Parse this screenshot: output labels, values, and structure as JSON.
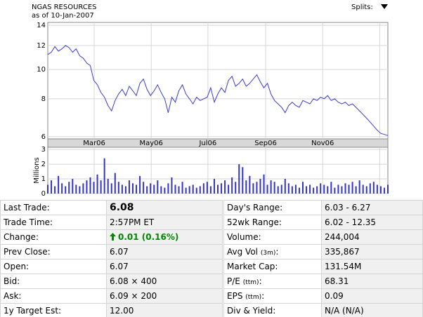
{
  "chart_data": [
    {
      "type": "line",
      "title": "NGAS RESOURCES",
      "subtitle": "as of 10-Jan-2007",
      "splits_label": "Splits:",
      "log_scale": true,
      "grid": true,
      "color": "#3a3ad8",
      "xlim": [
        0,
        96
      ],
      "xticks": [
        {
          "value": 13.1,
          "label": "Mar06"
        },
        {
          "value": 29.2,
          "label": "May06"
        },
        {
          "value": 45.2,
          "label": "Jul06"
        },
        {
          "value": 61.5,
          "label": "Sep06"
        },
        {
          "value": 77.6,
          "label": "Nov06"
        },
        {
          "value": 93.7,
          "label": null
        }
      ],
      "ylim": [
        5.9,
        14.3
      ],
      "yticks": [
        6,
        8,
        10,
        12,
        14
      ],
      "values": [
        11.2,
        11.4,
        11.9,
        11.5,
        11.7,
        12.0,
        11.8,
        11.4,
        11.7,
        11.1,
        10.9,
        10.5,
        10.3,
        9.2,
        8.9,
        8.4,
        8.1,
        7.6,
        7.3,
        7.9,
        8.3,
        8.6,
        8.2,
        8.8,
        8.5,
        8.2,
        9.0,
        9.3,
        8.6,
        8.2,
        8.5,
        8.9,
        8.4,
        8.0,
        7.2,
        8.1,
        7.8,
        8.5,
        8.9,
        8.3,
        8.0,
        7.7,
        8.1,
        7.9,
        8.0,
        8.1,
        8.7,
        7.8,
        8.3,
        8.7,
        8.4,
        9.2,
        9.5,
        8.8,
        9.0,
        9.3,
        8.8,
        9.0,
        9.3,
        9.6,
        9.1,
        8.7,
        9.0,
        8.3,
        7.9,
        7.7,
        7.5,
        7.2,
        7.6,
        7.8,
        7.6,
        7.5,
        7.9,
        7.8,
        7.7,
        8.0,
        7.9,
        8.1,
        8.0,
        8.2,
        7.9,
        8.0,
        7.8,
        7.7,
        7.8,
        7.6,
        7.7,
        7.5,
        7.3,
        7.1,
        6.9,
        6.7,
        6.5,
        6.3,
        6.15,
        6.1,
        6.05
      ]
    },
    {
      "type": "bar",
      "ylabel": "Millions",
      "grid": true,
      "color": "#3333cc",
      "xlim": [
        0,
        96
      ],
      "ylim": [
        0,
        3.15
      ],
      "yticks": [
        0,
        1,
        2,
        3
      ],
      "values": [
        0.6,
        0.9,
        0.5,
        1.2,
        0.7,
        0.5,
        0.8,
        1.0,
        0.6,
        0.5,
        0.7,
        0.9,
        1.1,
        0.8,
        1.3,
        0.9,
        2.4,
        1.0,
        0.7,
        1.4,
        0.8,
        0.6,
        0.5,
        0.9,
        0.7,
        0.6,
        1.2,
        0.8,
        0.5,
        0.7,
        0.6,
        0.9,
        0.5,
        0.4,
        0.7,
        1.1,
        0.6,
        0.5,
        0.8,
        0.4,
        0.5,
        0.6,
        0.4,
        0.5,
        0.7,
        0.8,
        0.5,
        1.0,
        0.6,
        0.7,
        0.9,
        0.6,
        1.1,
        0.8,
        2.0,
        1.8,
        0.9,
        1.2,
        0.7,
        0.8,
        1.0,
        1.3,
        0.6,
        0.9,
        0.8,
        0.5,
        0.6,
        1.0,
        0.7,
        0.5,
        0.6,
        0.4,
        0.8,
        0.5,
        0.6,
        0.4,
        0.5,
        0.7,
        0.6,
        0.5,
        0.8,
        0.4,
        0.6,
        0.5,
        0.7,
        0.6,
        0.8,
        0.5,
        0.9,
        0.6,
        0.5,
        0.7,
        0.8,
        0.6,
        0.5,
        0.4,
        0.6
      ]
    }
  ],
  "quote_table": {
    "left": [
      {
        "label": "Last Trade:",
        "value": "6.08",
        "bold": true
      },
      {
        "label": "Trade Time:",
        "value": "2:57PM ET"
      },
      {
        "label": "Change:",
        "value": "0.01 (0.16%)",
        "up": true
      },
      {
        "label": "Prev Close:",
        "value": "6.07"
      },
      {
        "label": "Open:",
        "value": "6.07"
      },
      {
        "label": "Bid:",
        "value": "6.08 × 400"
      },
      {
        "label": "Ask:",
        "value": "6.09 × 200"
      },
      {
        "label": "1y Target Est:",
        "value": "12.00"
      }
    ],
    "right": [
      {
        "label": "Day's Range:",
        "value": "6.03 - 6.27"
      },
      {
        "label": "52wk Range:",
        "value": "6.02 - 12.35"
      },
      {
        "label": "Volume:",
        "value": "244,004"
      },
      {
        "label": "Avg Vol",
        "note": "(3m)",
        "suffix": ":",
        "value": "335,867"
      },
      {
        "label": "Market Cap:",
        "value": "131.54M"
      },
      {
        "label": "P/E",
        "note": "(ttm)",
        "suffix": ":",
        "value": "68.31"
      },
      {
        "label": "EPS",
        "note": "(ttm)",
        "suffix": ":",
        "value": "0.09"
      },
      {
        "label": "Div & Yield:",
        "value": "N/A (N/A)"
      }
    ]
  }
}
